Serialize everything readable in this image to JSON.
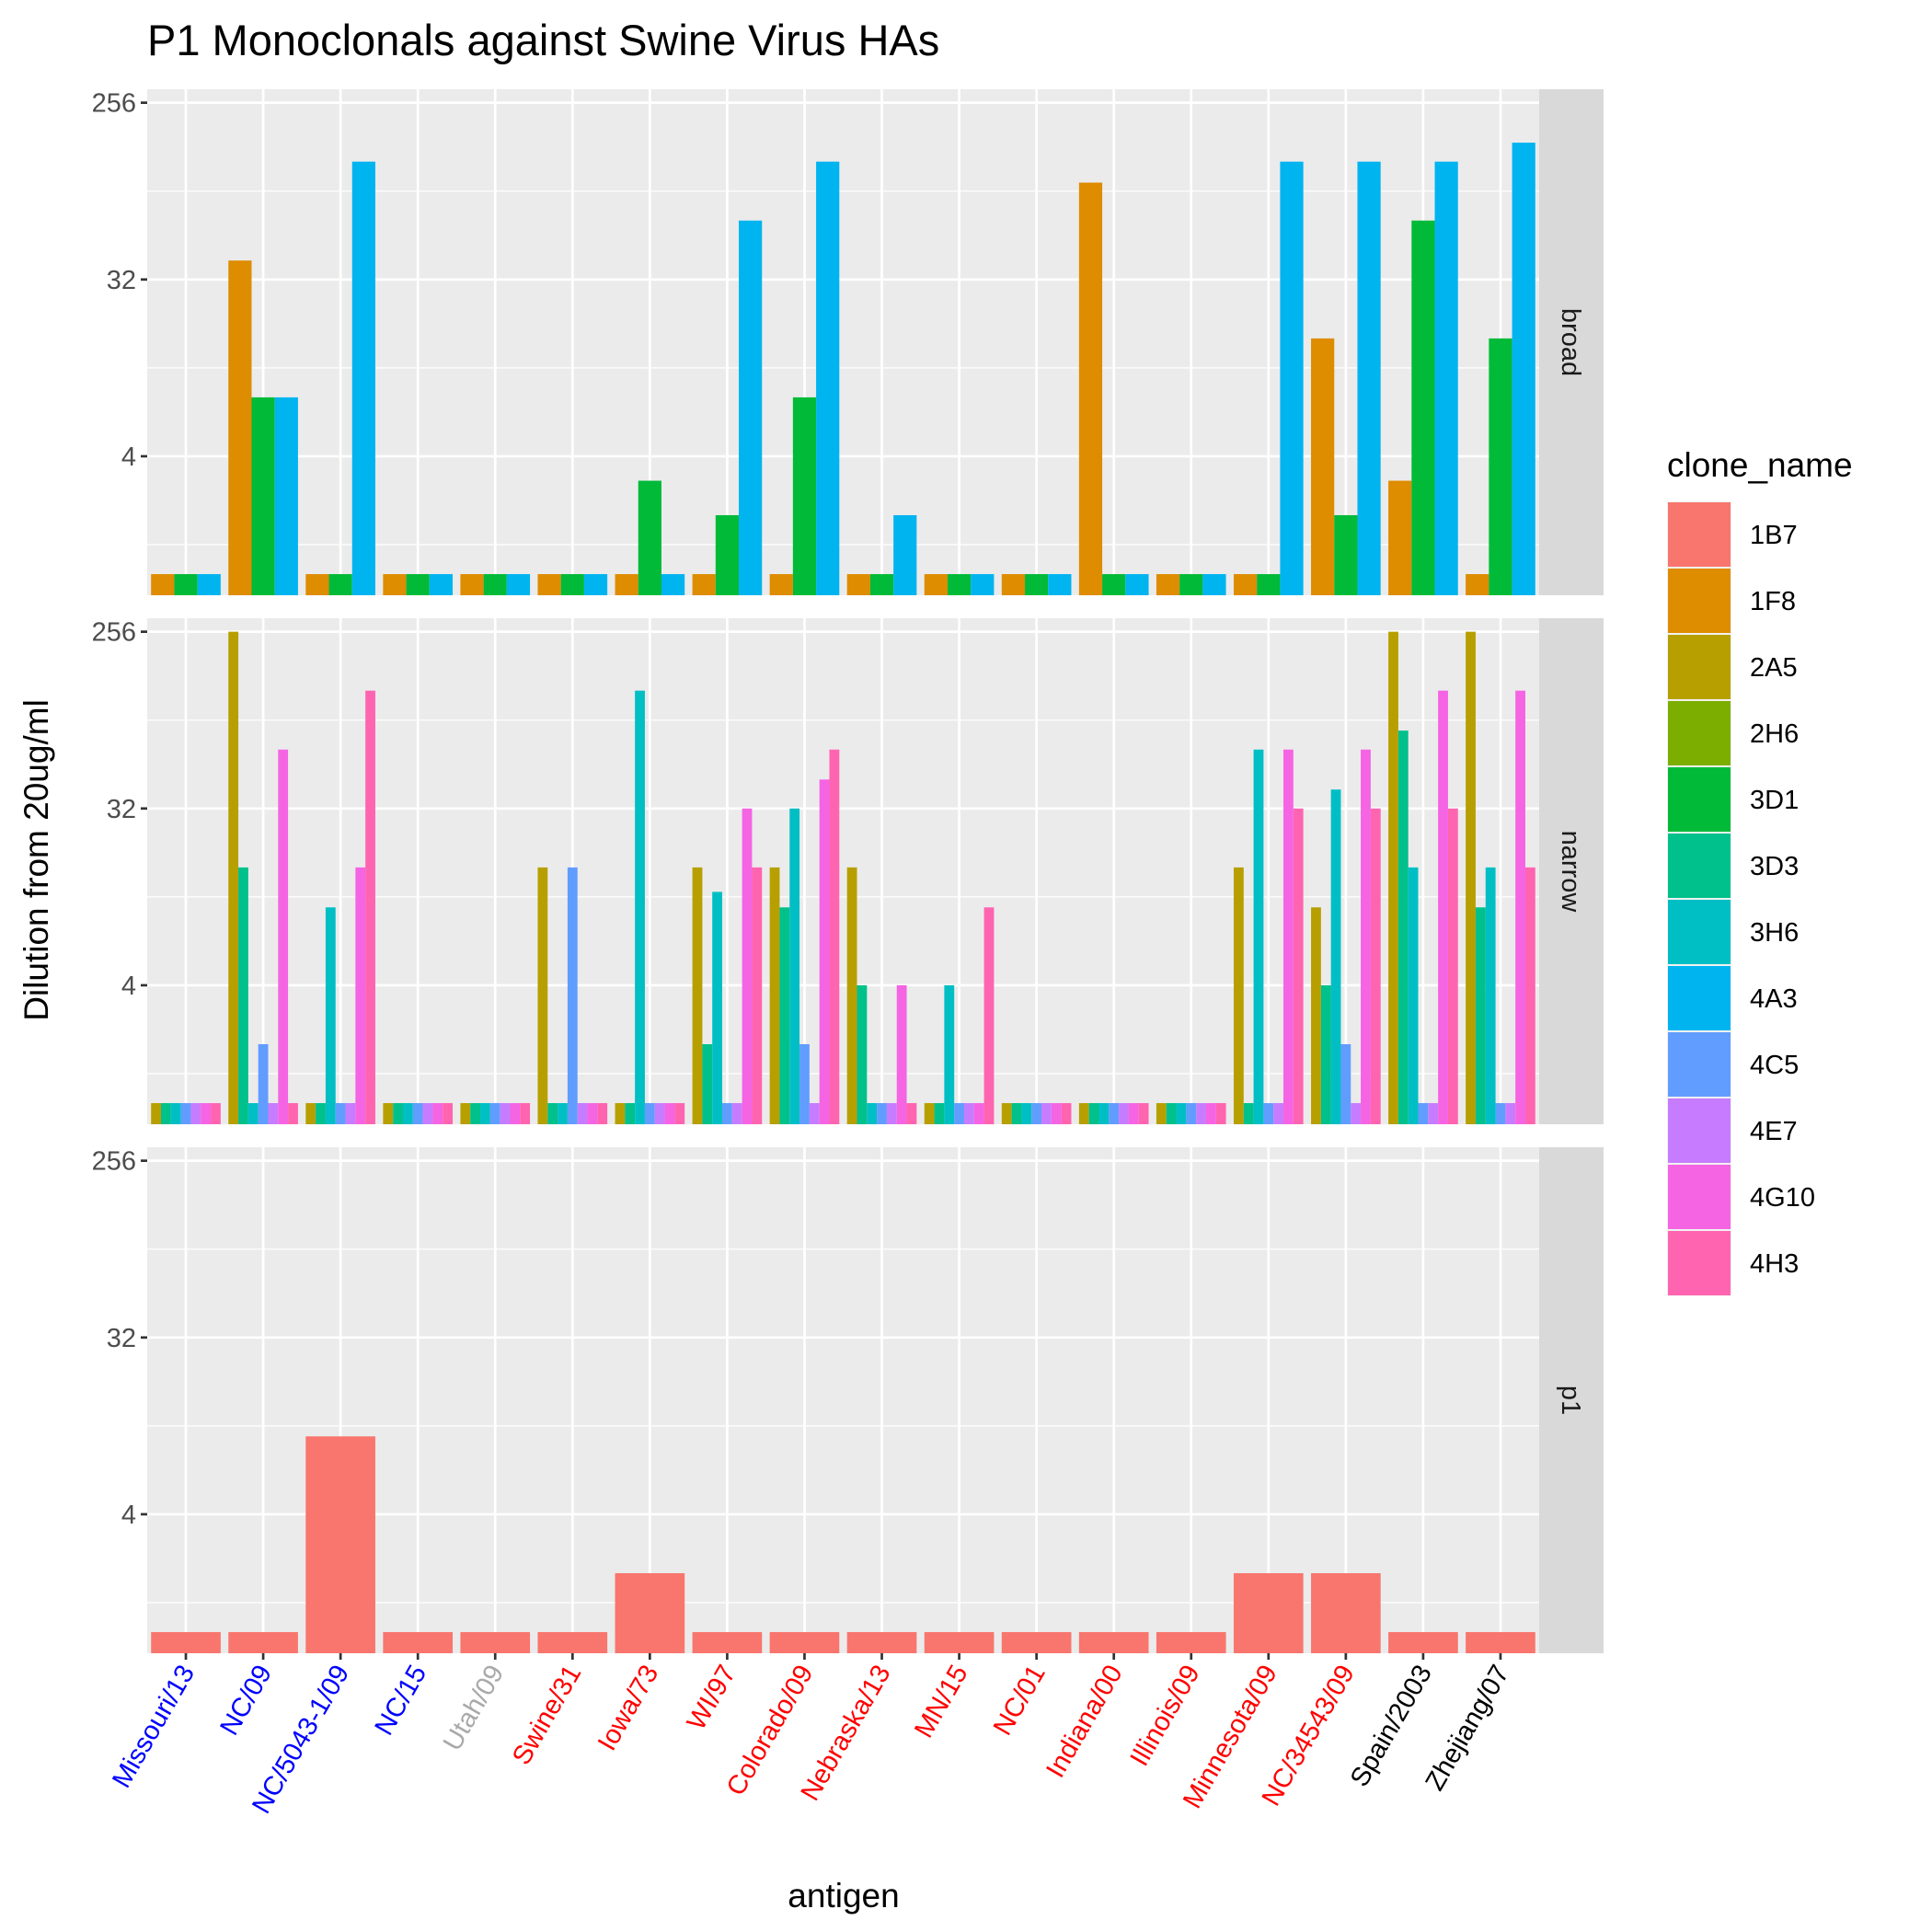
{
  "chart_data": {
    "type": "bar",
    "title": "P1 Monoclonals against Swine Virus HAs",
    "xlabel": "antigen",
    "ylabel": "Dilution from 20ug/ml",
    "y_scale": "log2",
    "ylim": [
      0.78,
      300
    ],
    "y_ticks": [
      4,
      32,
      256
    ],
    "y_tick_labels": [
      "4",
      "32",
      "256"
    ],
    "grid": true,
    "legend_position": "right",
    "legend_title": "clone_name",
    "clones": [
      "1B7",
      "1F8",
      "2A5",
      "2H6",
      "3D1",
      "3D3",
      "3H6",
      "4A3",
      "4C5",
      "4E7",
      "4G10",
      "4H3"
    ],
    "clone_colors": [
      "#F8766D",
      "#DE8C00",
      "#B79F00",
      "#7CAE00",
      "#00BA38",
      "#00C08B",
      "#00BFC4",
      "#00B4F0",
      "#619CFF",
      "#C77CFF",
      "#F564E3",
      "#FF64B0"
    ],
    "categories": [
      "Missouri/13",
      "NC/09",
      "NC/5043-1/09",
      "NC/15",
      "Utah/09",
      "Swine/31",
      "Iowa/73",
      "WI/97",
      "Colorado/09",
      "Nebraska/13",
      "MN/15",
      "NC/01",
      "Indiana/00",
      "Illinois/09",
      "Minnesota/09",
      "NC/34543/09",
      "Spain/2003",
      "Zhejiang/07"
    ],
    "category_colors": [
      "#0000FF",
      "#0000FF",
      "#0000FF",
      "#0000FF",
      "#A9A9A9",
      "#FF0000",
      "#FF0000",
      "#FF0000",
      "#FF0000",
      "#FF0000",
      "#FF0000",
      "#FF0000",
      "#FF0000",
      "#FF0000",
      "#FF0000",
      "#FF0000",
      "#000000",
      "#000000"
    ],
    "facets": [
      {
        "label": "broad",
        "clones": [
          "1F8",
          "3D1",
          "4A3"
        ],
        "values": [
          [
            1,
            1,
            1
          ],
          [
            40,
            8,
            8
          ],
          [
            1,
            1,
            128
          ],
          [
            1,
            1,
            1
          ],
          [
            1,
            1,
            1
          ],
          [
            1,
            1,
            1
          ],
          [
            1,
            3,
            1
          ],
          [
            1,
            2,
            64
          ],
          [
            1,
            8,
            128
          ],
          [
            1,
            1,
            2
          ],
          [
            1,
            1,
            1
          ],
          [
            1,
            1,
            1
          ],
          [
            100,
            1,
            1
          ],
          [
            1,
            1,
            1
          ],
          [
            1,
            1,
            128
          ],
          [
            16,
            2,
            128
          ],
          [
            3,
            64,
            128
          ],
          [
            1,
            16,
            160
          ]
        ]
      },
      {
        "label": "narrow",
        "clones": [
          "2A5",
          "3D3",
          "3H6",
          "4C5",
          "4E7",
          "4G10",
          "4H3"
        ],
        "values": [
          [
            1,
            1,
            1,
            1,
            1,
            1,
            1
          ],
          [
            256,
            16,
            1,
            2,
            1,
            64,
            1
          ],
          [
            1,
            1,
            10,
            1,
            1,
            16,
            128
          ],
          [
            1,
            1,
            1,
            1,
            1,
            1,
            1
          ],
          [
            1,
            1,
            1,
            1,
            1,
            1,
            1
          ],
          [
            16,
            1,
            1,
            16,
            1,
            1,
            1
          ],
          [
            1,
            1,
            128,
            1,
            1,
            1,
            1
          ],
          [
            16,
            2,
            12,
            1,
            1,
            32,
            16
          ],
          [
            16,
            10,
            32,
            2,
            1,
            45,
            64
          ],
          [
            16,
            4,
            1,
            1,
            1,
            4,
            1
          ],
          [
            1,
            1,
            4,
            1,
            1,
            1,
            10
          ],
          [
            1,
            1,
            1,
            1,
            1,
            1,
            1
          ],
          [
            1,
            1,
            1,
            1,
            1,
            1,
            1
          ],
          [
            1,
            1,
            1,
            1,
            1,
            1,
            1
          ],
          [
            16,
            1,
            64,
            1,
            1,
            64,
            32
          ],
          [
            10,
            4,
            40,
            2,
            1,
            64,
            32
          ],
          [
            256,
            80,
            16,
            1,
            1,
            128,
            32
          ],
          [
            256,
            10,
            16,
            1,
            1,
            128,
            16
          ]
        ]
      },
      {
        "label": "p1",
        "clones": [
          "1B7"
        ],
        "values": [
          [
            1
          ],
          [
            1
          ],
          [
            10
          ],
          [
            1
          ],
          [
            1
          ],
          [
            1
          ],
          [
            2
          ],
          [
            1
          ],
          [
            1
          ],
          [
            1
          ],
          [
            1
          ],
          [
            1
          ],
          [
            1
          ],
          [
            1
          ],
          [
            2
          ],
          [
            2
          ],
          [
            1
          ],
          [
            1
          ]
        ]
      }
    ]
  }
}
